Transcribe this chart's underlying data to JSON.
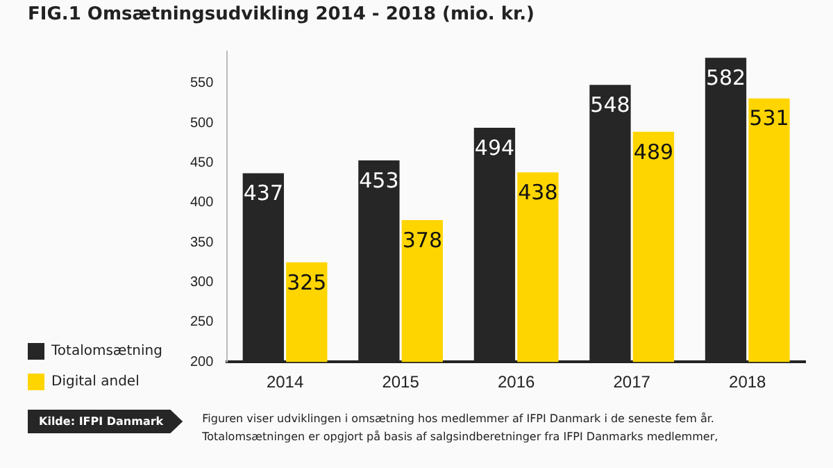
{
  "chart_data": {
    "type": "bar",
    "title": "FIG.1  Omsætningsudvikling 2014 - 2018 (mio. kr.)",
    "categories": [
      "2014",
      "2015",
      "2016",
      "2017",
      "2018"
    ],
    "series": [
      {
        "name": "Totalomsætning",
        "color": "#262626",
        "values": [
          437,
          453,
          494,
          548,
          582
        ]
      },
      {
        "name": "Digital andel",
        "color": "#ffd500",
        "values": [
          325,
          378,
          438,
          489,
          531
        ]
      }
    ],
    "ylim": [
      200,
      590
    ],
    "yticks": [
      200,
      250,
      300,
      350,
      400,
      450,
      500,
      550
    ],
    "grid": false,
    "legend": "left",
    "data_labels": true,
    "annotations": [
      "Kilde: IFPI Danmark",
      "Figuren viser udviklingen i omsætning hos medlemmer af IFPI Danmark i de seneste fem år. Totalomsætningen er opgjort på basis af salgsindberetninger fra IFPI Danmarks medlemmer,"
    ]
  }
}
